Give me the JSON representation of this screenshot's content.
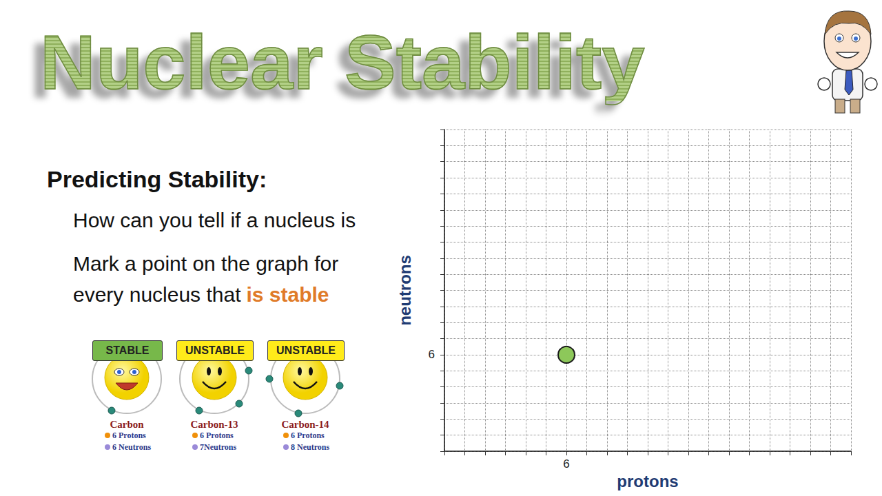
{
  "slide": {
    "title": "Nuclear Stability",
    "heading": "Predicting Stability:",
    "lines": [
      "How can you tell if a nucleus is",
      "Mark a point on the graph for"
    ],
    "last_line": {
      "text": "every nucleus that",
      "emphasis": "is stable"
    },
    "nuclides": [
      {
        "status": "STABLE",
        "color": "#77b84a",
        "name": "Carbon",
        "protons": "6 Protons",
        "neutrons": "6 Neutrons"
      },
      {
        "status": "UNSTABLE",
        "color": "#ffeb1a",
        "name": "Carbon-13",
        "protons": "6 Protons",
        "neutrons": "7Neutrons"
      },
      {
        "status": "UNSTABLE",
        "color": "#ffeb1a",
        "name": "Carbon-14",
        "protons": "6 Protons",
        "neutrons": "8 Neutrons"
      }
    ]
  },
  "chart_data": {
    "type": "scatter",
    "x_label": "protons",
    "y_label": "neutrons",
    "x": [
      6
    ],
    "values": [
      6
    ],
    "color": "#8dc85a",
    "xlim": [
      0,
      20
    ],
    "ylim": [
      0,
      20
    ],
    "xticks": [
      6
    ],
    "yticks": [
      6
    ],
    "grid": true
  }
}
